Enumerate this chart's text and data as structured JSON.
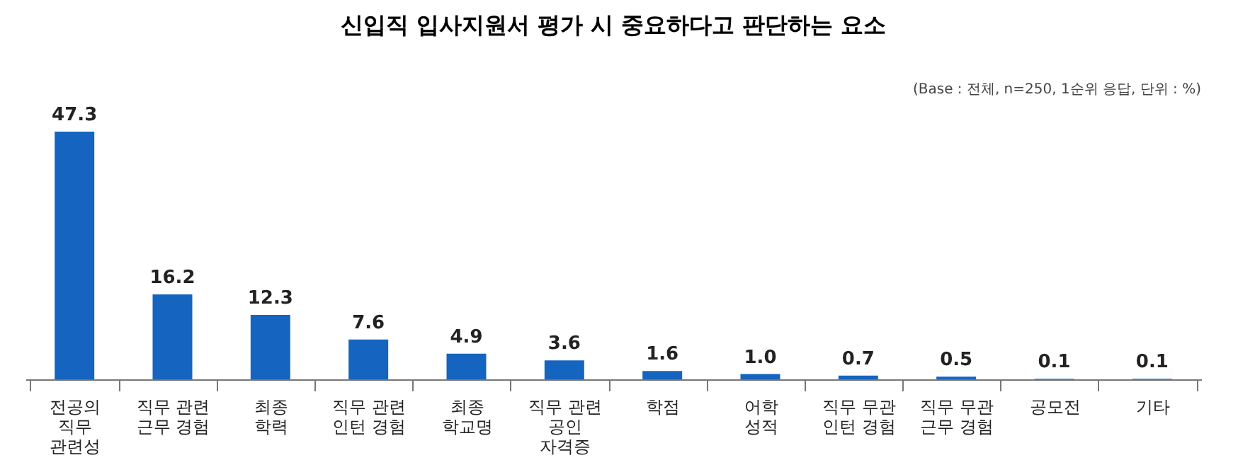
{
  "chart_data": {
    "type": "bar",
    "title": "신입직 입사지원서 평가 시 중요하다고 판단하는 요소",
    "annotations": [
      "(Base : 전체, n=250, 1순위 응답, 단위 : %)"
    ],
    "categories": [
      "전공의\n직무\n관련성",
      "직무 관련\n근무 경험",
      "최종\n학력",
      "직무 관련\n인턴 경험",
      "최종\n학교명",
      "직무 관련\n공인\n자격증",
      "학점",
      "어학\n성적",
      "직무 무관\n인턴 경험",
      "직무 무관\n근무 경험",
      "공모전",
      "기타"
    ],
    "values": [
      47.3,
      16.2,
      12.3,
      7.6,
      4.9,
      3.6,
      1.6,
      1.0,
      0.7,
      0.5,
      0.1,
      0.1
    ],
    "value_labels": [
      "47.3",
      "16.2",
      "12.3",
      "7.6",
      "4.9",
      "3.6",
      "1.6",
      "1.0",
      "0.7",
      "0.5",
      "0.1",
      "0.1"
    ],
    "color": "#1565c0",
    "grid": false
  }
}
